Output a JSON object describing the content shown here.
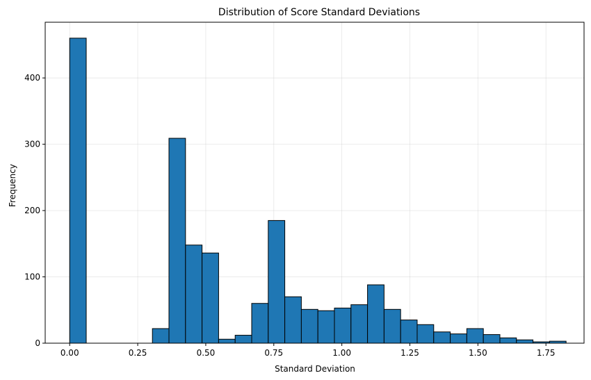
{
  "chart_data": {
    "type": "bar",
    "title": "Distribution of Score Standard Deviations",
    "xlabel": "Standard Deviation",
    "ylabel": "Frequency",
    "xlim": [
      -0.09,
      1.89
    ],
    "ylim": [
      0,
      484
    ],
    "grid": true,
    "bar_color": "#1f77b4",
    "edge_color": "#000000",
    "bin_start": 0.0,
    "bin_width": 0.0608,
    "values": [
      460,
      0,
      0,
      0,
      0,
      22,
      309,
      148,
      136,
      6,
      12,
      60,
      185,
      70,
      51,
      49,
      53,
      58,
      88,
      51,
      35,
      28,
      17,
      14,
      22,
      13,
      8,
      5,
      2,
      3
    ],
    "xticks": [
      0.0,
      0.25,
      0.5,
      0.75,
      1.0,
      1.25,
      1.5,
      1.75
    ],
    "xtick_labels": [
      "0.00",
      "0.25",
      "0.50",
      "0.75",
      "1.00",
      "1.25",
      "1.50",
      "1.75"
    ],
    "yticks": [
      0,
      100,
      200,
      300,
      400
    ],
    "ytick_labels": [
      "0",
      "100",
      "200",
      "300",
      "400"
    ]
  }
}
